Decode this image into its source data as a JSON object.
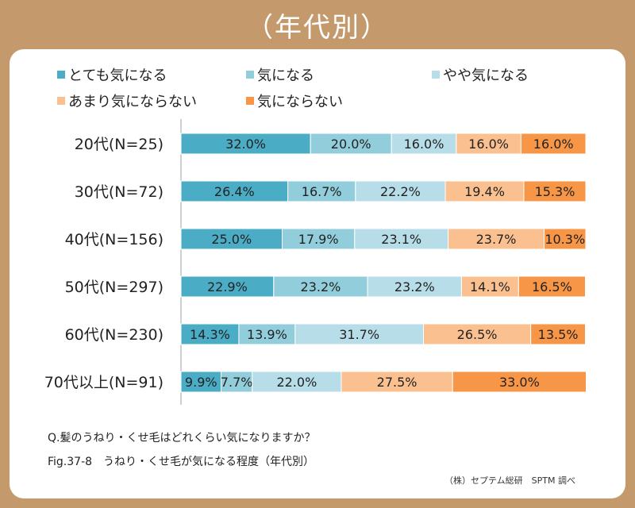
{
  "title": "（年代別）",
  "question": "Q.髪のうねり・くせ毛はどれくらい気になりますか？",
  "figure_caption": "Fig.37-8　うねり・くせ毛が気になる程度（年代別）",
  "credit": "（株）セプテム総研　SPTM 調べ",
  "colors": {
    "frame": "#c49a6c",
    "series": [
      "#4bacc6",
      "#92cddc",
      "#b7dee8",
      "#fac090",
      "#f79646"
    ]
  },
  "chart_data": {
    "type": "bar",
    "orientation": "horizontal",
    "stacked": "percent",
    "categories": [
      "20代(N=25)",
      "30代(N=72)",
      "40代(N=156)",
      "50代(N=297)",
      "60代(N=230)",
      "70代以上(N=91)"
    ],
    "series": [
      {
        "name": "とても気になる",
        "values": [
          32.0,
          26.4,
          25.0,
          22.9,
          14.3,
          9.9
        ]
      },
      {
        "name": "気になる",
        "values": [
          20.0,
          16.7,
          17.9,
          23.2,
          13.9,
          7.7
        ]
      },
      {
        "name": "やや気になる",
        "values": [
          16.0,
          22.2,
          23.1,
          23.2,
          31.7,
          22.0
        ]
      },
      {
        "name": "あまり気にならない",
        "values": [
          16.0,
          19.4,
          23.7,
          14.1,
          26.5,
          27.5
        ]
      },
      {
        "name": "気にならない",
        "values": [
          16.0,
          15.3,
          10.3,
          16.5,
          13.5,
          33.0
        ]
      }
    ],
    "xlim": [
      0,
      100
    ],
    "grid": false,
    "legend_position": "top"
  }
}
